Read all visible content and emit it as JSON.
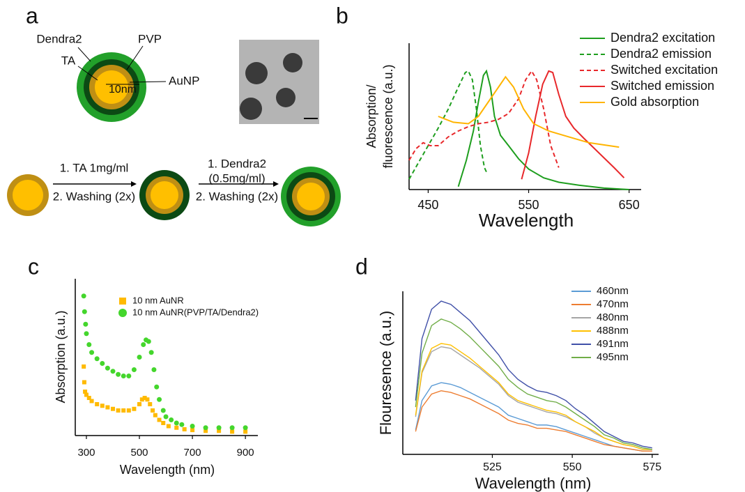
{
  "panel_a": {
    "label": "a",
    "particle": {
      "dendra2": "Dendra2",
      "pvp": "PVP",
      "ta": "TA",
      "aunp": "AuNP",
      "size": "10nm"
    },
    "step1": [
      "1. TA 1mg/ml",
      "2. Washing (2x)"
    ],
    "step2": [
      "1. Dendra2",
      "(0.5mg/ml)",
      "2. Washing (2x)"
    ]
  },
  "chart_data": [
    {
      "type": "line",
      "label": "b",
      "xlabel": "Wavelength",
      "ylabel": [
        "Absorption/",
        "fluorescence (a.u.)"
      ],
      "xlim": [
        431,
        662
      ],
      "xticks": [
        450,
        550,
        650
      ],
      "ylim": [
        0,
        1
      ],
      "series": [
        {
          "name": "Dendra2 excitation",
          "color": "#1e9e1e",
          "line_style": "solid",
          "x": [
            480,
            488,
            495,
            500,
            505,
            508,
            512,
            516,
            522,
            530,
            540,
            550,
            565,
            580,
            600,
            625,
            650
          ],
          "values": [
            0.02,
            0.2,
            0.4,
            0.6,
            0.78,
            0.81,
            0.7,
            0.5,
            0.37,
            0.3,
            0.21,
            0.14,
            0.08,
            0.05,
            0.03,
            0.01,
            0.0
          ]
        },
        {
          "name": "Dendra2 emission",
          "color": "#1e9e1e",
          "line_style": "dashed",
          "x": [
            431,
            440,
            450,
            460,
            470,
            480,
            487,
            490,
            494,
            498,
            502,
            506,
            508
          ],
          "values": [
            0.07,
            0.18,
            0.3,
            0.42,
            0.55,
            0.7,
            0.8,
            0.81,
            0.75,
            0.55,
            0.3,
            0.15,
            0.12
          ]
        },
        {
          "name": "Switched excitation",
          "color": "#e8282b",
          "line_style": "dashed",
          "x": [
            431,
            438,
            445,
            452,
            460,
            470,
            480,
            490,
            500,
            510,
            520,
            530,
            540,
            547,
            553,
            558,
            565,
            572,
            580
          ],
          "values": [
            0.2,
            0.28,
            0.32,
            0.3,
            0.3,
            0.36,
            0.4,
            0.43,
            0.45,
            0.46,
            0.48,
            0.52,
            0.62,
            0.75,
            0.81,
            0.75,
            0.55,
            0.3,
            0.15
          ]
        },
        {
          "name": "Switched emission",
          "color": "#e8282b",
          "line_style": "solid",
          "x": [
            543,
            550,
            557,
            564,
            570,
            574,
            580,
            587,
            595,
            605,
            620,
            635,
            645
          ],
          "values": [
            0.07,
            0.25,
            0.5,
            0.72,
            0.81,
            0.8,
            0.65,
            0.5,
            0.42,
            0.35,
            0.25,
            0.15,
            0.08
          ]
        },
        {
          "name": "Gold absorption",
          "color": "#ffb400",
          "line_style": "solid",
          "x": [
            460,
            475,
            490,
            500,
            510,
            520,
            527,
            535,
            545,
            555,
            570,
            590,
            610,
            630,
            640
          ],
          "values": [
            0.5,
            0.46,
            0.45,
            0.5,
            0.6,
            0.7,
            0.77,
            0.7,
            0.55,
            0.45,
            0.4,
            0.36,
            0.32,
            0.3,
            0.29
          ]
        }
      ]
    },
    {
      "type": "scatter",
      "label": "c",
      "xlabel": "Wavelength (nm)",
      "ylabel": "Absorption (a.u.)",
      "xlim": [
        258,
        947
      ],
      "xticks": [
        300,
        500,
        700,
        900
      ],
      "ylim": [
        0,
        1
      ],
      "series": [
        {
          "name": "10 nm AuNR",
          "color": "#ffba00",
          "marker": "square",
          "x": [
            290,
            292,
            295,
            300,
            310,
            320,
            340,
            360,
            380,
            400,
            420,
            440,
            460,
            480,
            500,
            510,
            520,
            530,
            540,
            550,
            560,
            575,
            590,
            610,
            640,
            670,
            700,
            750,
            800,
            850,
            900
          ],
          "values": [
            0.44,
            0.34,
            0.28,
            0.26,
            0.24,
            0.22,
            0.2,
            0.19,
            0.18,
            0.17,
            0.16,
            0.16,
            0.16,
            0.17,
            0.2,
            0.23,
            0.24,
            0.23,
            0.2,
            0.16,
            0.13,
            0.1,
            0.08,
            0.06,
            0.05,
            0.04,
            0.035,
            0.03,
            0.03,
            0.025,
            0.025
          ]
        },
        {
          "name": "10 nm AuNR(PVP/TA/Dendra2)",
          "color": "#44d62c",
          "marker": "circle",
          "x": [
            290,
            293,
            297,
            300,
            310,
            320,
            340,
            360,
            380,
            400,
            420,
            440,
            460,
            480,
            500,
            515,
            525,
            535,
            545,
            555,
            565,
            575,
            590,
            600,
            620,
            640,
            660,
            700,
            750,
            800,
            850,
            900
          ],
          "values": [
            0.89,
            0.79,
            0.71,
            0.65,
            0.58,
            0.53,
            0.49,
            0.46,
            0.43,
            0.41,
            0.39,
            0.38,
            0.38,
            0.42,
            0.5,
            0.58,
            0.61,
            0.6,
            0.53,
            0.42,
            0.31,
            0.23,
            0.16,
            0.12,
            0.1,
            0.08,
            0.07,
            0.06,
            0.05,
            0.05,
            0.05,
            0.05
          ]
        }
      ]
    },
    {
      "type": "line",
      "label": "d",
      "xlabel": "Wavelength (nm)",
      "ylabel": "Flouresence (a.u.)",
      "xlim": [
        497,
        577
      ],
      "xticks": [
        525,
        550,
        575
      ],
      "ylim": [
        0,
        1
      ],
      "series": [
        {
          "name": "460nm",
          "color": "#5b9bd5",
          "line_style": "solid",
          "x": [
            501,
            503,
            506,
            509,
            512,
            515,
            518,
            521,
            524,
            527,
            530,
            533,
            536,
            539,
            542,
            545,
            548,
            551,
            554,
            557,
            560,
            563,
            566,
            569,
            572,
            575
          ],
          "values": [
            0.15,
            0.33,
            0.42,
            0.44,
            0.43,
            0.41,
            0.38,
            0.35,
            0.32,
            0.29,
            0.24,
            0.22,
            0.2,
            0.18,
            0.18,
            0.17,
            0.15,
            0.13,
            0.11,
            0.09,
            0.07,
            0.05,
            0.04,
            0.03,
            0.02,
            0.02
          ]
        },
        {
          "name": "470nm",
          "color": "#ed7d31",
          "line_style": "solid",
          "x": [
            501,
            503,
            506,
            509,
            512,
            515,
            518,
            521,
            524,
            527,
            530,
            533,
            536,
            539,
            542,
            545,
            548,
            551,
            554,
            557,
            560,
            563,
            566,
            569,
            572,
            575
          ],
          "values": [
            0.14,
            0.29,
            0.37,
            0.39,
            0.38,
            0.36,
            0.34,
            0.31,
            0.28,
            0.25,
            0.21,
            0.19,
            0.18,
            0.16,
            0.16,
            0.15,
            0.14,
            0.12,
            0.1,
            0.08,
            0.06,
            0.05,
            0.04,
            0.03,
            0.02,
            0.02
          ]
        },
        {
          "name": "480nm",
          "color": "#a5a5a5",
          "line_style": "solid",
          "x": [
            501,
            503,
            506,
            509,
            512,
            515,
            518,
            521,
            524,
            527,
            530,
            533,
            536,
            539,
            542,
            545,
            548,
            551,
            554,
            557,
            560,
            563,
            566,
            569,
            572,
            575
          ],
          "values": [
            0.23,
            0.5,
            0.63,
            0.66,
            0.65,
            0.61,
            0.57,
            0.53,
            0.48,
            0.43,
            0.36,
            0.32,
            0.3,
            0.28,
            0.26,
            0.25,
            0.23,
            0.2,
            0.17,
            0.13,
            0.1,
            0.08,
            0.06,
            0.05,
            0.03,
            0.03
          ]
        },
        {
          "name": "488nm",
          "color": "#ffc000",
          "line_style": "solid",
          "x": [
            501,
            503,
            506,
            509,
            512,
            515,
            518,
            521,
            524,
            527,
            530,
            533,
            536,
            539,
            542,
            545,
            548,
            551,
            554,
            557,
            560,
            563,
            566,
            569,
            572,
            575
          ],
          "values": [
            0.24,
            0.51,
            0.65,
            0.68,
            0.67,
            0.63,
            0.59,
            0.54,
            0.49,
            0.44,
            0.37,
            0.33,
            0.31,
            0.29,
            0.27,
            0.26,
            0.24,
            0.2,
            0.17,
            0.14,
            0.1,
            0.08,
            0.06,
            0.05,
            0.03,
            0.03
          ]
        },
        {
          "name": "491nm",
          "color": "#4050a8",
          "line_style": "solid",
          "x": [
            501,
            503,
            506,
            509,
            512,
            515,
            518,
            521,
            524,
            527,
            530,
            533,
            536,
            539,
            542,
            545,
            548,
            551,
            554,
            557,
            560,
            563,
            566,
            569,
            572,
            575
          ],
          "values": [
            0.33,
            0.71,
            0.89,
            0.94,
            0.92,
            0.87,
            0.82,
            0.75,
            0.68,
            0.61,
            0.52,
            0.46,
            0.42,
            0.39,
            0.38,
            0.36,
            0.33,
            0.28,
            0.24,
            0.19,
            0.14,
            0.11,
            0.08,
            0.07,
            0.05,
            0.04
          ]
        },
        {
          "name": "495nm",
          "color": "#70ad47",
          "line_style": "solid",
          "x": [
            501,
            503,
            506,
            509,
            512,
            515,
            518,
            521,
            524,
            527,
            530,
            533,
            536,
            539,
            542,
            545,
            548,
            551,
            554,
            557,
            560,
            563,
            566,
            569,
            572,
            575
          ],
          "values": [
            0.29,
            0.62,
            0.79,
            0.83,
            0.81,
            0.77,
            0.72,
            0.66,
            0.6,
            0.54,
            0.46,
            0.41,
            0.37,
            0.35,
            0.33,
            0.32,
            0.29,
            0.25,
            0.21,
            0.17,
            0.12,
            0.1,
            0.07,
            0.06,
            0.04,
            0.03
          ]
        }
      ]
    }
  ]
}
